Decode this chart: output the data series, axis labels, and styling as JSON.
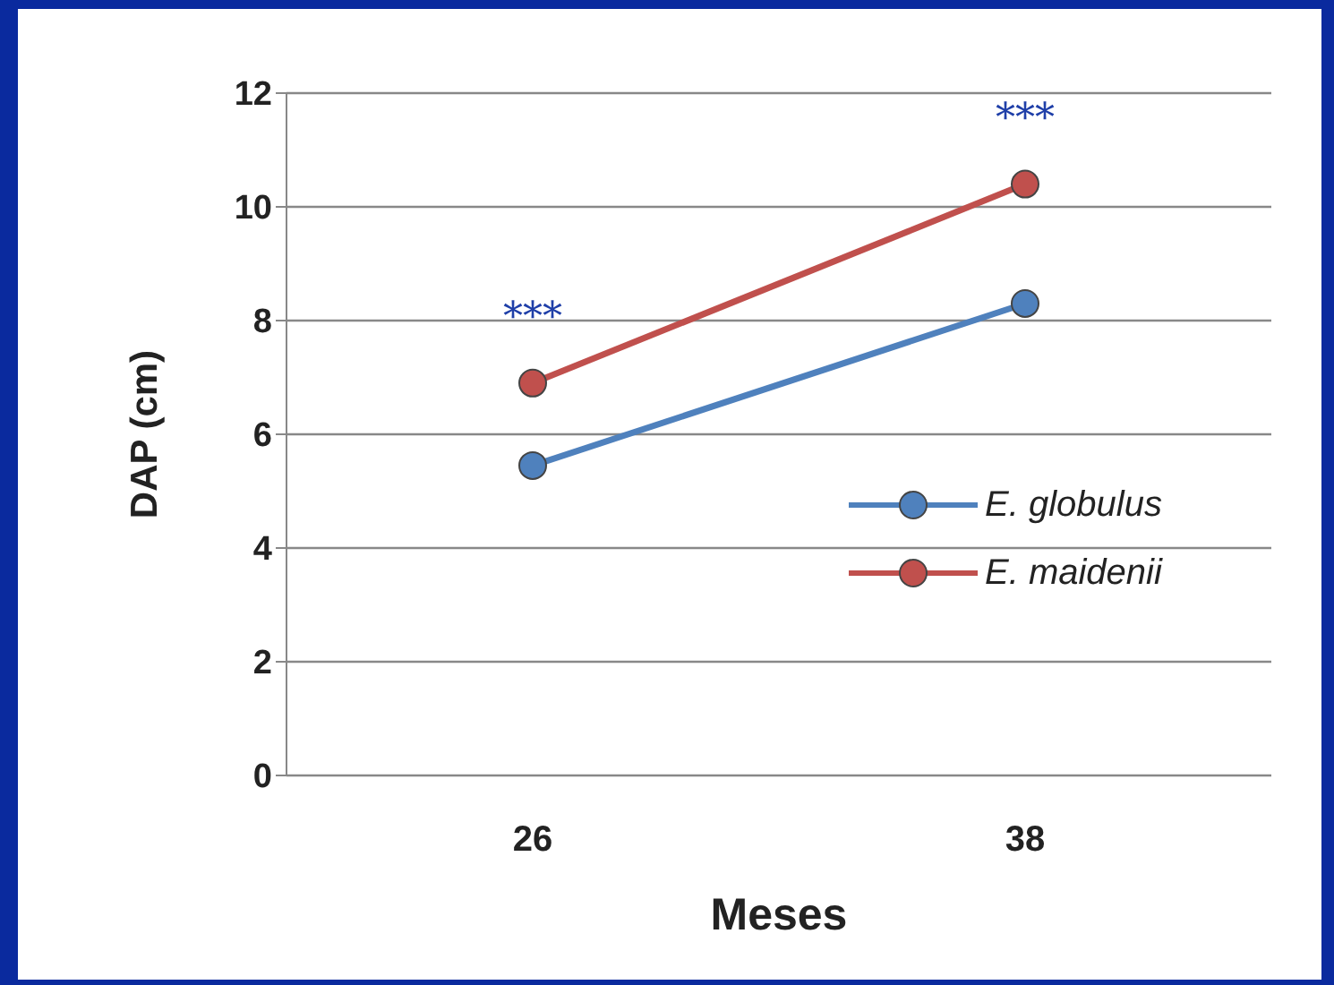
{
  "chart_data": {
    "type": "line",
    "xlabel": "Meses",
    "ylabel": "DAP (cm)",
    "x": [
      26,
      38
    ],
    "xlim": [
      20,
      44
    ],
    "xticks": [
      26,
      38
    ],
    "series": [
      {
        "name": "E. globulus",
        "color": "#4f81bd",
        "values": [
          5.45,
          8.3
        ]
      },
      {
        "name": "E. maidenii",
        "color": "#c0504d",
        "values": [
          6.9,
          10.4
        ]
      }
    ],
    "ylim": [
      0,
      12
    ],
    "yticks": [
      0,
      2,
      4,
      6,
      8,
      10,
      12
    ],
    "grid": "y",
    "legend": "right",
    "marker": "circle",
    "line_style": "solid",
    "annotations": [
      {
        "text": "***",
        "x": 26,
        "y": 6.9
      },
      {
        "text": "***",
        "x": 38,
        "y": 10.4
      }
    ]
  }
}
